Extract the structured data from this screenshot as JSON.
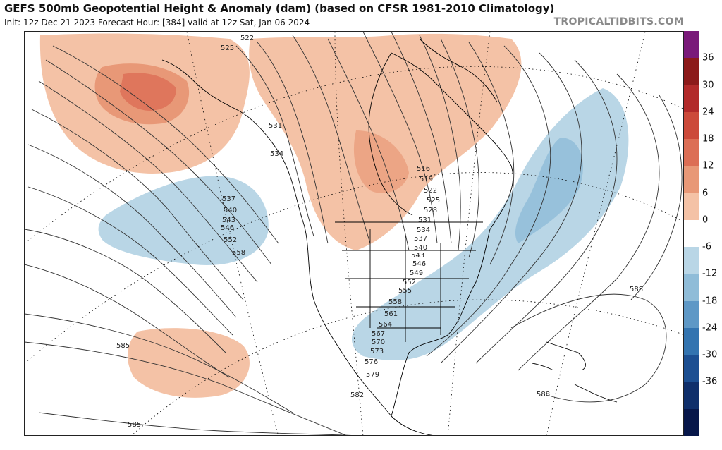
{
  "header": {
    "title": "GEFS 500mb Geopotential Height & Anomaly (dam) (based on CFSR 1981-2010 Climatology)",
    "subtitle": "Init: 12z Dec 21 2023   Forecast Hour: [384]   valid at 12z Sat, Jan 06 2024",
    "brand": "TROPICALTIDBITS.COM"
  },
  "colorbar": {
    "levels": [
      36,
      30,
      24,
      18,
      12,
      6,
      0,
      -6,
      -12,
      -18,
      -24,
      -30,
      -36
    ],
    "colors": [
      "#7a1a7a",
      "#8c1a1a",
      "#b22a2a",
      "#cc4a3a",
      "#dc6e55",
      "#e89877",
      "#f4c2a6",
      "#ffffff",
      "#b9d6e6",
      "#8fbcd8",
      "#5e98c6",
      "#3374b0",
      "#1c4f92",
      "#0f2f6b",
      "#07174a"
    ]
  },
  "map": {
    "contour_labels": [
      "522",
      "525",
      "531",
      "534",
      "537",
      "540",
      "543",
      "546",
      "552",
      "558",
      "516",
      "519",
      "522",
      "525",
      "528",
      "531",
      "534",
      "537",
      "540",
      "543",
      "546",
      "549",
      "552",
      "555",
      "558",
      "561",
      "564",
      "567",
      "570",
      "573",
      "576",
      "579",
      "582",
      "585",
      "585",
      "588",
      "588"
    ],
    "icons": [
      "map-land-outline"
    ]
  }
}
